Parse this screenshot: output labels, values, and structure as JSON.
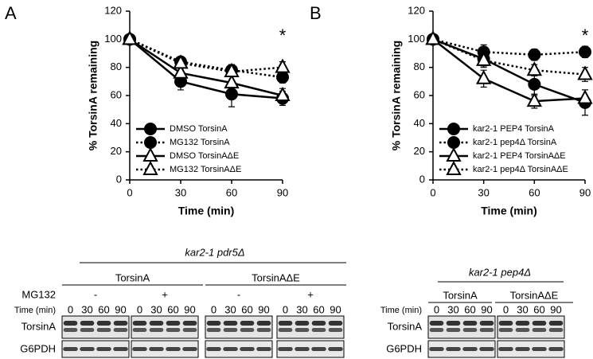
{
  "chart_data": [
    {
      "type": "line",
      "panel_label": "A",
      "x_label": "Time (min)",
      "y_label": "% TorsinA remaining",
      "x": [
        0,
        30,
        60,
        90
      ],
      "xlim": [
        0,
        90
      ],
      "xticks": [
        0,
        30,
        60,
        90
      ],
      "ylim": [
        0,
        120
      ],
      "yticks": [
        0,
        20,
        40,
        60,
        80,
        100,
        120
      ],
      "annotation": "*",
      "series": [
        {
          "name": "DMSO TorsinA",
          "marker": "circle",
          "linestyle": "solid",
          "color": "#000000",
          "values": [
            100,
            70,
            61,
            58
          ],
          "errors": [
            0,
            6,
            9,
            5
          ]
        },
        {
          "name": "MG132 TorsinA",
          "marker": "circle",
          "linestyle": "dotted",
          "color": "#000000",
          "values": [
            100,
            84,
            78,
            73
          ],
          "errors": [
            0,
            3,
            4,
            4
          ]
        },
        {
          "name": "DMSO TorsinAΔE",
          "marker": "triangle",
          "linestyle": "solid",
          "color": "#000000",
          "values": [
            100,
            76,
            69,
            60
          ],
          "errors": [
            0,
            4,
            5,
            5
          ]
        },
        {
          "name": "MG132 TorsinAΔE",
          "marker": "triangle",
          "linestyle": "dotted",
          "color": "#000000",
          "values": [
            100,
            83,
            77,
            80
          ],
          "errors": [
            0,
            3,
            3,
            4
          ]
        }
      ]
    },
    {
      "type": "line",
      "panel_label": "B",
      "x_label": "Time (min)",
      "y_label": "% TorsinA remaining",
      "x": [
        0,
        30,
        60,
        90
      ],
      "xlim": [
        0,
        90
      ],
      "xticks": [
        0,
        30,
        60,
        90
      ],
      "ylim": [
        0,
        120
      ],
      "yticks": [
        0,
        20,
        40,
        60,
        80,
        100,
        120
      ],
      "annotation": "*",
      "series": [
        {
          "name": "kar2-1 PEP4 TorsinA",
          "marker": "circle",
          "linestyle": "solid",
          "color": "#000000",
          "values": [
            100,
            86,
            68,
            55
          ],
          "errors": [
            0,
            6,
            8,
            9
          ]
        },
        {
          "name": "kar2-1 pep4Δ TorsinA",
          "marker": "circle",
          "linestyle": "dotted",
          "color": "#000000",
          "values": [
            100,
            91,
            89,
            91
          ],
          "errors": [
            0,
            5,
            4,
            4
          ]
        },
        {
          "name": "kar2-1 PEP4 TorsinAΔE",
          "marker": "triangle",
          "linestyle": "solid",
          "color": "#000000",
          "values": [
            100,
            72,
            56,
            58
          ],
          "errors": [
            0,
            6,
            5,
            6
          ]
        },
        {
          "name": "kar2-1 pep4Δ TorsinAΔE",
          "marker": "triangle",
          "linestyle": "dotted",
          "color": "#000000",
          "values": [
            100,
            85,
            78,
            75
          ],
          "errors": [
            0,
            4,
            4,
            5
          ]
        }
      ]
    }
  ],
  "blots": [
    {
      "title": "kar2-1 pdr5Δ",
      "groups": [
        "TorsinA",
        "TorsinAΔE"
      ],
      "treatment_label": "MG132",
      "treatments": [
        "-",
        "+",
        "-",
        "+"
      ],
      "time_label": "Time (min)",
      "times": [
        "0",
        "30",
        "60",
        "90"
      ],
      "rows": [
        "TorsinA",
        "G6PDH"
      ]
    },
    {
      "title": "kar2-1 pep4Δ",
      "groups": [
        "TorsinA",
        "TorsinAΔE"
      ],
      "time_label": "Time (min)",
      "times": [
        "0",
        "30",
        "60",
        "90"
      ],
      "rows": [
        "TorsinA",
        "G6PDH"
      ]
    }
  ]
}
